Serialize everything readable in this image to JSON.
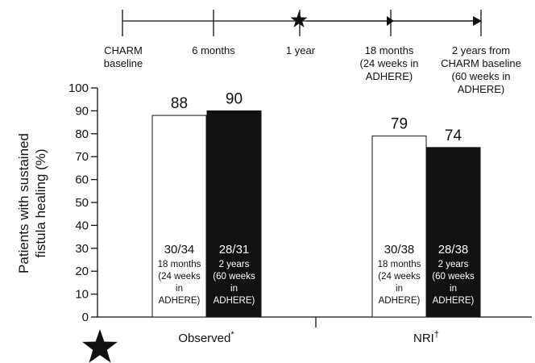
{
  "timeline": {
    "points": [
      {
        "id": "charm-baseline",
        "lines": [
          "CHARM",
          "baseline"
        ]
      },
      {
        "id": "6-months",
        "lines": [
          "6 months"
        ]
      },
      {
        "id": "1-year",
        "lines": [
          "1 year"
        ]
      },
      {
        "id": "18-months",
        "lines": [
          "18 months",
          "(24 weeks in",
          "ADHERE)"
        ]
      },
      {
        "id": "2-years",
        "lines": [
          "2 years from",
          "CHARM baseline",
          "(60 weeks in",
          "ADHERE)"
        ]
      }
    ],
    "star_at": "1 year"
  },
  "chart_data": {
    "type": "bar",
    "ylabel": "Patients with sustained fistula healing (%)",
    "ylabel_lines": [
      "Patients with sustained",
      "fistula healing (%)"
    ],
    "ylim": [
      0,
      100
    ],
    "yticks": [
      0,
      10,
      20,
      30,
      40,
      50,
      60,
      70,
      80,
      90,
      100
    ],
    "categories": [
      "Observed*",
      "NRI†"
    ],
    "category_labels": [
      {
        "text": "Observed",
        "sup": "*"
      },
      {
        "text": "NRI",
        "sup": "†"
      }
    ],
    "series": [
      {
        "color": "#ffffff",
        "values": [
          88,
          79
        ],
        "counts": [
          "30/34",
          "30/38"
        ],
        "sublabel_lines": [
          "18 months",
          "(24 weeks",
          "in",
          "ADHERE)"
        ]
      },
      {
        "color": "#111111",
        "values": [
          90,
          74
        ],
        "counts": [
          "28/31",
          "28/38"
        ],
        "sublabel_lines": [
          "2 years",
          "(60 weeks",
          "in",
          "ADHERE)"
        ]
      }
    ],
    "grid": false,
    "legend": "none"
  }
}
